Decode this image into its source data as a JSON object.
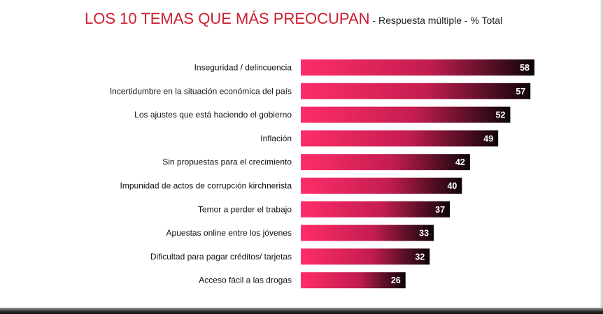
{
  "title": {
    "main": "LOS 10 TEMAS QUE MÁS PREOCUPAN",
    "sub": " - Respuesta múltiple - % Total"
  },
  "colors": {
    "title": "#cc1f2e",
    "bar_start": "#ff2d6a",
    "bar_mid": "#c21d4f",
    "bar_end": "#0c0507"
  },
  "chart_data": {
    "type": "bar",
    "orientation": "horizontal",
    "title": "LOS 10 TEMAS QUE MÁS PREOCUPAN - Respuesta múltiple - % Total",
    "categories": [
      "Inseguridad / delincuencia",
      "Incertidumbre en la situación económica del país",
      "Los ajustes que está haciendo el gobierno",
      "Inflación",
      "Sin propuestas para el crecimiento",
      "Impunidad de actos de corrupción kirchnerista",
      "Temor a perder el trabajo",
      "Apuestas online entre los jóvenes",
      "Dificultad para pagar créditos/ tarjetas",
      "Acceso fácil a las drogas"
    ],
    "values": [
      58,
      57,
      52,
      49,
      42,
      40,
      37,
      33,
      32,
      26
    ],
    "value_labels": [
      "58",
      "57",
      "52",
      "49",
      "42",
      "40",
      "37",
      "33",
      "32",
      "26"
    ],
    "xlim": [
      0,
      58
    ],
    "grid": false,
    "legend": "none"
  }
}
